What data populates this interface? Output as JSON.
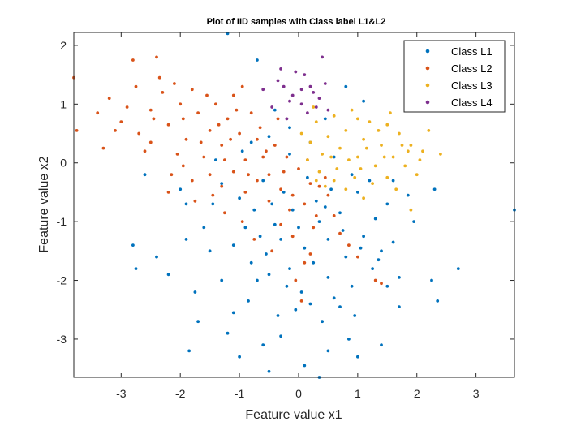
{
  "chart_data": {
    "type": "scatter",
    "title": "Plot of IID samples with Class label L1&L2",
    "xlabel": "Feature value x1",
    "ylabel": "Feature value x2",
    "xlim": [
      -3.8,
      3.65
    ],
    "ylim": [
      -3.65,
      2.22
    ],
    "xticks": [
      -3,
      -2,
      -1,
      0,
      1,
      2,
      3
    ],
    "yticks": [
      -3,
      -2,
      -1,
      0,
      1,
      2
    ],
    "xtick_labels": [
      "-3",
      "-2",
      "-1",
      "0",
      "1",
      "2",
      "3"
    ],
    "ytick_labels": [
      "-3",
      "-2",
      "-1",
      "0",
      "1",
      "2"
    ],
    "grid": false,
    "legend_position": "top-right",
    "series": [
      {
        "name": "Class L1",
        "color": "#0072BD",
        "points": [
          [
            -1.2,
            2.2
          ],
          [
            -0.7,
            1.75
          ],
          [
            0.8,
            1.3
          ],
          [
            1.1,
            1.05
          ],
          [
            -0.4,
            0.9
          ],
          [
            0.45,
            0.75
          ],
          [
            -0.15,
            0.6
          ],
          [
            -0.5,
            0.45
          ],
          [
            -0.95,
            0.2
          ],
          [
            -1.4,
            0.05
          ],
          [
            -2.6,
            -0.2
          ],
          [
            -2.8,
            -1.4
          ],
          [
            -2.75,
            -1.8
          ],
          [
            -2.2,
            -1.9
          ],
          [
            -1.9,
            -1.3
          ],
          [
            -1.5,
            -1.5
          ],
          [
            -1.7,
            -2.7
          ],
          [
            -1.85,
            -3.2
          ],
          [
            -1.3,
            -2.0
          ],
          [
            -1.2,
            -2.9
          ],
          [
            -1.0,
            -3.3
          ],
          [
            -0.6,
            -3.1
          ],
          [
            -0.5,
            -3.55
          ],
          [
            0.1,
            -3.45
          ],
          [
            0.35,
            -3.65
          ],
          [
            0.5,
            -3.2
          ],
          [
            0.85,
            -3.0
          ],
          [
            1.0,
            -3.3
          ],
          [
            1.4,
            -3.1
          ],
          [
            1.7,
            -2.45
          ],
          [
            2.25,
            -2.0
          ],
          [
            2.35,
            -2.35
          ],
          [
            2.7,
            -1.8
          ],
          [
            3.65,
            -0.8
          ],
          [
            2.3,
            -0.45
          ],
          [
            1.95,
            -1.0
          ],
          [
            1.6,
            -1.35
          ],
          [
            1.25,
            -1.8
          ],
          [
            0.9,
            -2.1
          ],
          [
            0.6,
            -2.3
          ],
          [
            0.2,
            -2.4
          ],
          [
            -0.2,
            -2.1
          ],
          [
            -0.5,
            -1.9
          ],
          [
            -0.8,
            -1.7
          ],
          [
            -1.1,
            -1.4
          ],
          [
            -0.9,
            -1.1
          ],
          [
            -0.4,
            -1.05
          ],
          [
            -0.1,
            -0.8
          ],
          [
            0.3,
            -0.65
          ],
          [
            0.7,
            -0.85
          ],
          [
            1.0,
            -0.5
          ],
          [
            1.3,
            -0.95
          ],
          [
            0.5,
            -1.3
          ],
          [
            0.1,
            -1.45
          ],
          [
            -0.3,
            -1.3
          ],
          [
            -0.65,
            -1.25
          ],
          [
            0.8,
            -1.6
          ],
          [
            0.25,
            -1.7
          ],
          [
            -0.15,
            -1.8
          ],
          [
            1.1,
            -1.25
          ],
          [
            1.5,
            -0.7
          ],
          [
            1.7,
            -1.95
          ],
          [
            0.4,
            -2.7
          ],
          [
            -0.35,
            -2.6
          ],
          [
            -0.85,
            -2.35
          ],
          [
            0.05,
            -2.2
          ],
          [
            0.95,
            -2.6
          ],
          [
            -1.3,
            -0.35
          ],
          [
            -1.0,
            -0.6
          ],
          [
            -0.6,
            -0.3
          ],
          [
            -0.25,
            -0.5
          ],
          [
            0.15,
            -0.25
          ],
          [
            0.55,
            -0.45
          ],
          [
            0.9,
            -0.2
          ],
          [
            1.2,
            -0.3
          ],
          [
            -1.6,
            -1.1
          ],
          [
            -1.45,
            -0.7
          ],
          [
            -0.75,
            -0.8
          ],
          [
            0.35,
            -1.0
          ],
          [
            0.75,
            -1.15
          ],
          [
            1.05,
            -1.45
          ],
          [
            1.35,
            -1.65
          ],
          [
            -0.55,
            -1.55
          ],
          [
            0.0,
            -1.1
          ],
          [
            -0.05,
            -2.5
          ],
          [
            0.5,
            -1.95
          ],
          [
            1.6,
            -0.3
          ],
          [
            1.85,
            -0.55
          ],
          [
            -2.4,
            -1.6
          ],
          [
            -1.75,
            -2.2
          ],
          [
            -1.1,
            -2.55
          ],
          [
            -0.3,
            -2.95
          ],
          [
            0.7,
            -2.45
          ],
          [
            1.5,
            -2.1
          ],
          [
            -0.15,
            0.15
          ],
          [
            0.6,
            0.1
          ],
          [
            -0.8,
            0.35
          ],
          [
            0.2,
            0.35
          ],
          [
            1.4,
            -1.5
          ],
          [
            -2.0,
            -0.45
          ],
          [
            -1.9,
            -0.7
          ],
          [
            -0.45,
            -0.7
          ],
          [
            0.45,
            -0.75
          ],
          [
            -0.7,
            -2.0
          ]
        ]
      },
      {
        "name": "Class L2",
        "color": "#D95319",
        "points": [
          [
            -3.8,
            1.45
          ],
          [
            -3.75,
            0.55
          ],
          [
            -3.4,
            0.85
          ],
          [
            -3.2,
            1.1
          ],
          [
            -3.3,
            0.25
          ],
          [
            -3.1,
            0.55
          ],
          [
            -2.8,
            1.75
          ],
          [
            -2.4,
            1.8
          ],
          [
            -2.9,
            0.95
          ],
          [
            -2.7,
            0.5
          ],
          [
            -2.5,
            0.9
          ],
          [
            -2.6,
            0.2
          ],
          [
            -2.3,
            1.2
          ],
          [
            -2.1,
            1.35
          ],
          [
            -2.2,
            0.65
          ],
          [
            -2.0,
            1.0
          ],
          [
            -1.8,
            1.25
          ],
          [
            -1.9,
            0.4
          ],
          [
            -1.7,
            0.85
          ],
          [
            -1.6,
            0.1
          ],
          [
            -1.5,
            0.55
          ],
          [
            -1.4,
            1.0
          ],
          [
            -1.3,
            0.3
          ],
          [
            -1.2,
            0.75
          ],
          [
            -1.1,
            1.15
          ],
          [
            -1.0,
            0.5
          ],
          [
            -0.9,
            0.05
          ],
          [
            -0.8,
            0.85
          ],
          [
            -0.7,
            0.4
          ],
          [
            -0.6,
            0.1
          ],
          [
            -0.5,
            -0.2
          ],
          [
            -0.4,
            0.3
          ],
          [
            -0.3,
            -0.45
          ],
          [
            -0.2,
            0.1
          ],
          [
            -0.1,
            -0.55
          ],
          [
            0.0,
            -0.1
          ],
          [
            0.1,
            -0.7
          ],
          [
            0.2,
            -0.35
          ],
          [
            0.3,
            -0.9
          ],
          [
            0.5,
            -0.55
          ],
          [
            0.7,
            -1.2
          ],
          [
            1.0,
            -1.6
          ],
          [
            1.3,
            -2.0
          ],
          [
            1.4,
            -2.05
          ],
          [
            0.1,
            -1.7
          ],
          [
            -0.1,
            -1.25
          ],
          [
            -0.3,
            -1.05
          ],
          [
            -0.5,
            -0.65
          ],
          [
            -0.7,
            -0.3
          ],
          [
            -0.9,
            -0.5
          ],
          [
            -1.1,
            -0.15
          ],
          [
            -1.3,
            -0.4
          ],
          [
            -1.5,
            -0.2
          ],
          [
            -1.8,
            -0.3
          ],
          [
            -2.2,
            -0.5
          ],
          [
            -1.75,
            -0.65
          ],
          [
            -1.25,
            -0.85
          ],
          [
            -0.95,
            -1.0
          ],
          [
            -0.75,
            -1.3
          ],
          [
            -0.45,
            -1.5
          ],
          [
            0.05,
            -2.35
          ],
          [
            -0.05,
            -2.0
          ],
          [
            0.2,
            -1.55
          ],
          [
            -2.05,
            0.15
          ],
          [
            -1.45,
            -0.55
          ],
          [
            -1.15,
            0.4
          ],
          [
            -0.85,
            -0.2
          ],
          [
            -0.65,
            0.6
          ],
          [
            -0.35,
            0.75
          ],
          [
            -0.25,
            -0.15
          ],
          [
            0.15,
            0.05
          ],
          [
            0.45,
            -0.25
          ],
          [
            -2.5,
            0.35
          ],
          [
            -2.75,
            1.3
          ],
          [
            -3.0,
            0.7
          ],
          [
            -2.35,
            1.45
          ],
          [
            -1.95,
            0.75
          ],
          [
            -1.55,
            1.15
          ],
          [
            -1.05,
            0.9
          ],
          [
            -0.95,
            1.3
          ],
          [
            -2.15,
            -0.2
          ],
          [
            -1.65,
            0.35
          ],
          [
            -1.35,
            0.65
          ],
          [
            -0.55,
            0.2
          ],
          [
            0.35,
            -0.4
          ],
          [
            0.6,
            -0.9
          ],
          [
            0.85,
            -1.4
          ],
          [
            -1.95,
            -0.05
          ],
          [
            -1.25,
            0.05
          ],
          [
            -0.15,
            -0.8
          ],
          [
            0.25,
            -1.1
          ],
          [
            -2.45,
            0.75
          ]
        ]
      },
      {
        "name": "Class L3",
        "color": "#EDB120",
        "points": [
          [
            0.3,
            0.7
          ],
          [
            0.6,
            0.8
          ],
          [
            0.9,
            0.9
          ],
          [
            1.2,
            0.7
          ],
          [
            1.5,
            0.65
          ],
          [
            1.7,
            0.5
          ],
          [
            1.9,
            0.3
          ],
          [
            2.1,
            0.2
          ],
          [
            2.4,
            0.15
          ],
          [
            0.2,
            0.35
          ],
          [
            0.5,
            0.45
          ],
          [
            0.8,
            0.55
          ],
          [
            1.1,
            0.4
          ],
          [
            1.4,
            0.3
          ],
          [
            1.6,
            0.1
          ],
          [
            1.8,
            -0.05
          ],
          [
            2.0,
            -0.2
          ],
          [
            0.15,
            0.05
          ],
          [
            0.4,
            0.15
          ],
          [
            0.7,
            0.25
          ],
          [
            1.0,
            0.1
          ],
          [
            1.3,
            -0.05
          ],
          [
            1.5,
            -0.25
          ],
          [
            0.35,
            -0.15
          ],
          [
            0.65,
            -0.1
          ],
          [
            0.95,
            -0.25
          ],
          [
            1.25,
            -0.35
          ],
          [
            1.65,
            -0.45
          ],
          [
            0.45,
            -0.4
          ],
          [
            0.8,
            -0.45
          ],
          [
            1.1,
            -0.6
          ],
          [
            1.9,
            -0.8
          ],
          [
            0.05,
            0.5
          ],
          [
            0.25,
            0.95
          ],
          [
            1.0,
            0.75
          ],
          [
            1.35,
            0.55
          ],
          [
            1.55,
            0.85
          ],
          [
            1.75,
            0.3
          ],
          [
            2.2,
            0.55
          ],
          [
            2.05,
            0.05
          ],
          [
            1.85,
            0.2
          ],
          [
            0.55,
            0.1
          ],
          [
            0.85,
            0.05
          ],
          [
            1.15,
            0.25
          ],
          [
            1.45,
            0.1
          ],
          [
            0.3,
            -0.3
          ],
          [
            0.6,
            -0.3
          ],
          [
            1.05,
            -0.1
          ]
        ]
      },
      {
        "name": "Class L4",
        "color": "#7E2F8E",
        "points": [
          [
            -0.3,
            1.6
          ],
          [
            0.4,
            1.8
          ],
          [
            -0.05,
            1.55
          ],
          [
            0.1,
            1.5
          ],
          [
            -0.6,
            1.25
          ],
          [
            -0.25,
            1.3
          ],
          [
            -0.1,
            1.15
          ],
          [
            0.05,
            1.0
          ],
          [
            0.2,
            1.3
          ],
          [
            0.35,
            1.1
          ],
          [
            0.45,
            1.35
          ],
          [
            0.25,
            1.2
          ],
          [
            -0.15,
            1.05
          ],
          [
            0.15,
            0.85
          ],
          [
            -0.45,
            0.95
          ],
          [
            0.3,
            0.95
          ],
          [
            -0.2,
            0.75
          ],
          [
            0.5,
            0.9
          ],
          [
            -0.35,
            1.4
          ],
          [
            0.05,
            1.25
          ]
        ]
      }
    ]
  }
}
